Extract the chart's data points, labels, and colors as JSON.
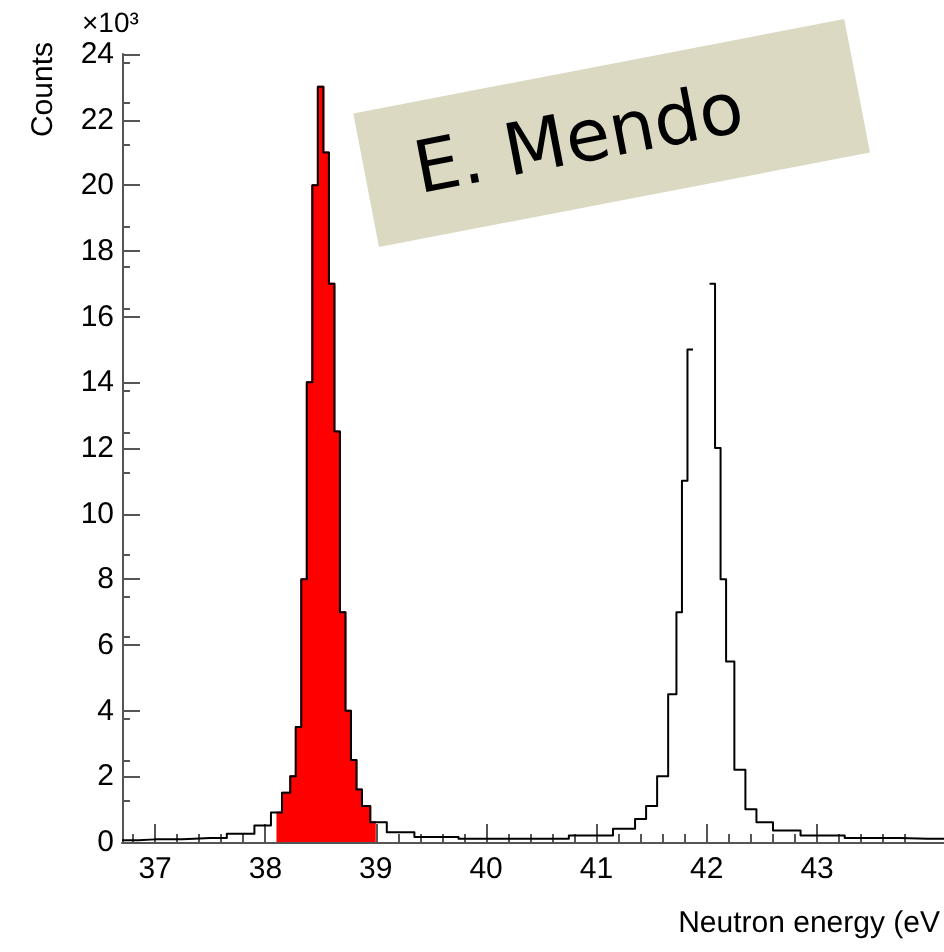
{
  "chart_data": {
    "type": "step",
    "xlabel": "Neutron energy (eV",
    "ylabel": "Counts",
    "annotations": [
      "×10³",
      "E. Mendo"
    ],
    "xlim": [
      36.7,
      44.15
    ],
    "xticks": [
      37,
      38,
      39,
      40,
      41,
      42,
      43
    ],
    "ylim": [
      0,
      24
    ],
    "yticks": [
      0,
      2,
      4,
      6,
      8,
      10,
      12,
      14,
      16,
      18,
      20,
      22,
      24
    ],
    "grid": false,
    "series": [
      {
        "color": "#000000",
        "x": [
          36.7,
          37,
          37.5,
          37.8,
          38.0,
          38.1,
          38.2,
          38.25,
          38.3,
          38.35,
          38.4,
          38.45,
          38.5,
          38.55,
          38.6,
          38.65,
          38.7,
          38.75,
          38.8,
          38.85,
          38.9,
          39.0,
          39.2,
          39.5,
          40,
          40.5,
          41,
          41.3,
          41.4,
          41.5,
          41.6,
          41.7,
          41.75,
          41.8,
          41.85,
          41.9,
          41.95,
          42.0,
          42.05,
          42.1,
          42.15,
          42.2,
          42.3,
          42.4,
          42.5,
          42.7,
          43,
          43.5,
          44,
          44.15
        ],
        "values": [
          0.05,
          0.08,
          0.12,
          0.25,
          0.5,
          0.9,
          1.5,
          2.0,
          3.5,
          8,
          14,
          20,
          23,
          21,
          17,
          12.5,
          7,
          4,
          2.5,
          1.6,
          1.1,
          0.6,
          0.3,
          0.15,
          0.1,
          0.1,
          0.2,
          0.4,
          0.7,
          1.1,
          2.0,
          4.5,
          7,
          11,
          15,
          null,
          null,
          null,
          17,
          12,
          8,
          5.5,
          2.2,
          1.0,
          0.6,
          0.35,
          0.2,
          0.12,
          0.1,
          0.1
        ]
      },
      {
        "type": "area",
        "color": "#ff0000",
        "x": [
          38.1,
          38.2,
          38.25,
          38.3,
          38.35,
          38.4,
          38.45,
          38.5,
          38.55,
          38.6,
          38.65,
          38.7,
          38.75,
          38.8,
          38.85,
          38.9,
          39.0
        ],
        "values": [
          0.9,
          1.5,
          2.0,
          3.5,
          8,
          14,
          20,
          23,
          21,
          17,
          12.5,
          7,
          4,
          2.5,
          1.6,
          1.1,
          0.6
        ]
      }
    ]
  }
}
